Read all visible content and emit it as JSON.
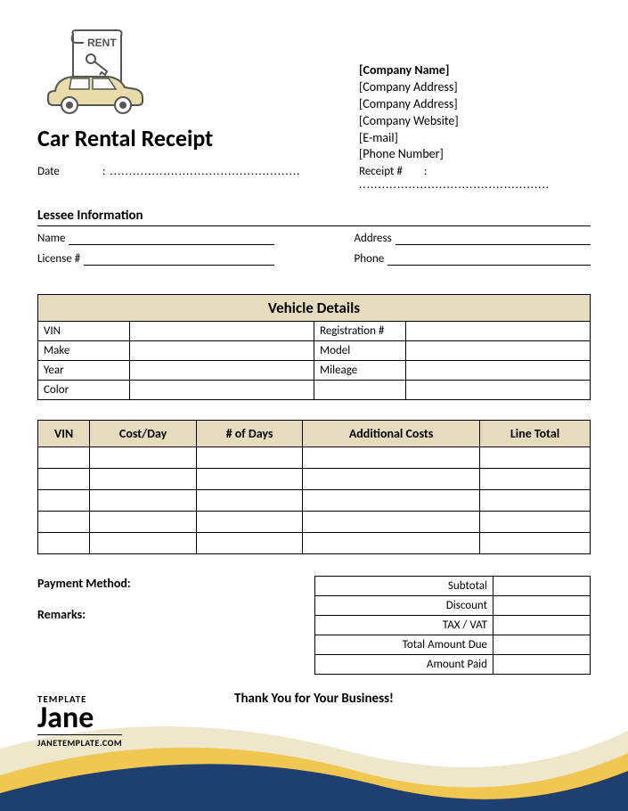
{
  "title": "Car Rental Receipt",
  "company": {
    "name": "[Company Name]",
    "addr1": "[Company Address]",
    "addr2": "[Company Address]",
    "website": "[Company Website]",
    "email": "[E-mail]",
    "phone": "[Phone Number]"
  },
  "meta": {
    "date_label": "Date",
    "date_value": "..................................................",
    "receipt_label": "Receipt #",
    "receipt_value": ".................................................."
  },
  "lessee": {
    "section": "Lessee Information",
    "name": "Name",
    "address": "Address",
    "license": "License #",
    "phone": "Phone"
  },
  "vehicle": {
    "heading": "Vehicle Details",
    "rows": [
      [
        "VIN",
        "Registration #"
      ],
      [
        "Make",
        "Model"
      ],
      [
        "Year",
        "Mileage"
      ],
      [
        "Color",
        ""
      ]
    ]
  },
  "cost_headers": [
    "VIN",
    "Cost/Day",
    "# of Days",
    "Additional Costs",
    "Line Total"
  ],
  "cost_rows": 5,
  "payment_label": "Payment Method:",
  "remarks_label": "Remarks:",
  "totals": [
    "Subtotal",
    "Discount",
    "TAX / VAT",
    "Total Amount Due",
    "Amount Paid"
  ],
  "thanks": "Thank You for Your Business!",
  "brand": {
    "top": "TEMPLATE",
    "main": "Jane",
    "url": "JANETEMPLATE.COM"
  },
  "colors": {
    "header_bg": "#e6dcbd",
    "wave_gold": "#f0c751",
    "wave_blue": "#1e3f6f",
    "wave_cream": "#efe7cc"
  }
}
